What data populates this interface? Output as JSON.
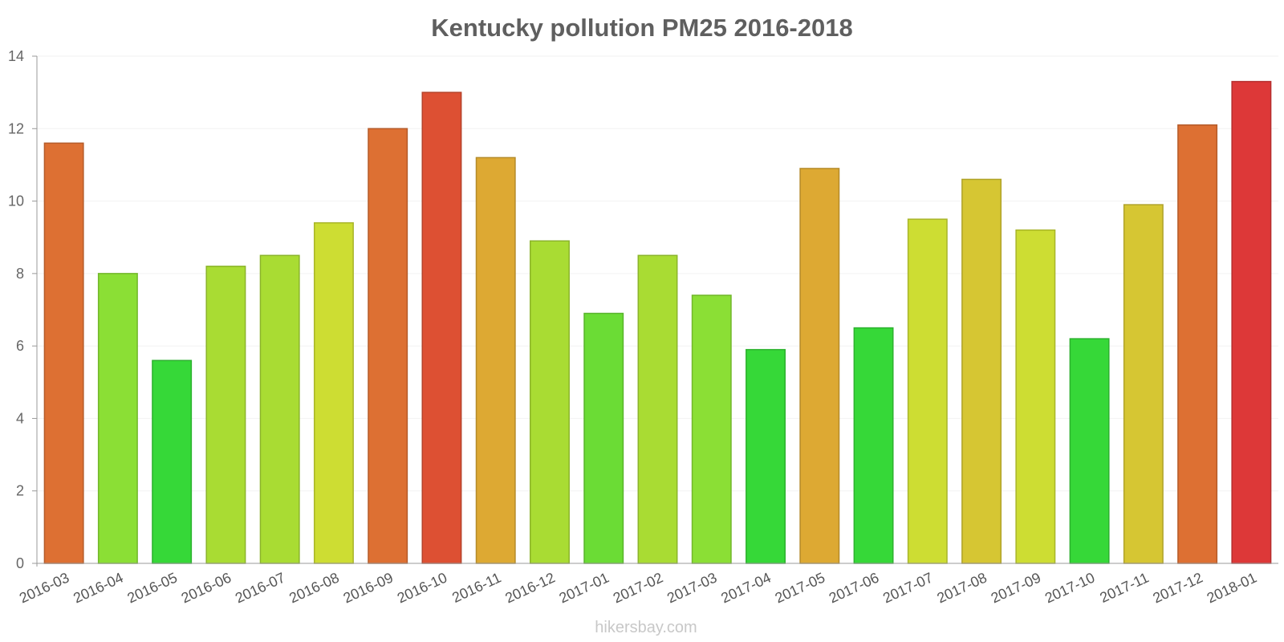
{
  "chart_data": {
    "type": "bar",
    "title": "Kentucky pollution PM25 2016-2018",
    "xlabel": "",
    "ylabel": "",
    "ylim": [
      0,
      14
    ],
    "yticks": [
      0,
      2,
      4,
      6,
      8,
      10,
      12,
      14
    ],
    "grid": true,
    "categories": [
      "2016-03",
      "2016-04",
      "2016-05",
      "2016-06",
      "2016-07",
      "2016-08",
      "2016-09",
      "2016-10",
      "2016-11",
      "2016-12",
      "2017-01",
      "2017-02",
      "2017-03",
      "2017-04",
      "2017-05",
      "2017-06",
      "2017-07",
      "2017-08",
      "2017-09",
      "2017-10",
      "2017-11",
      "2017-12",
      "2018-01"
    ],
    "values": [
      11.6,
      8.0,
      5.6,
      8.2,
      8.5,
      9.4,
      12.0,
      13.0,
      11.2,
      8.9,
      6.9,
      8.5,
      7.4,
      5.9,
      10.9,
      6.5,
      9.5,
      10.6,
      9.2,
      6.2,
      9.9,
      12.1,
      13.3
    ],
    "colors": [
      "#dd7033",
      "#8bdf35",
      "#36d838",
      "#a9dc33",
      "#a9dc33",
      "#cddd33",
      "#dd7033",
      "#dd5033",
      "#dda933",
      "#a9dc33",
      "#6bdc35",
      "#a9dc33",
      "#8bdf35",
      "#36d838",
      "#dda933",
      "#36d838",
      "#cddd33",
      "#d6c633",
      "#cddd33",
      "#36d838",
      "#d6c633",
      "#dd7033",
      "#dd3838"
    ]
  },
  "footer": "hikersbay.com"
}
